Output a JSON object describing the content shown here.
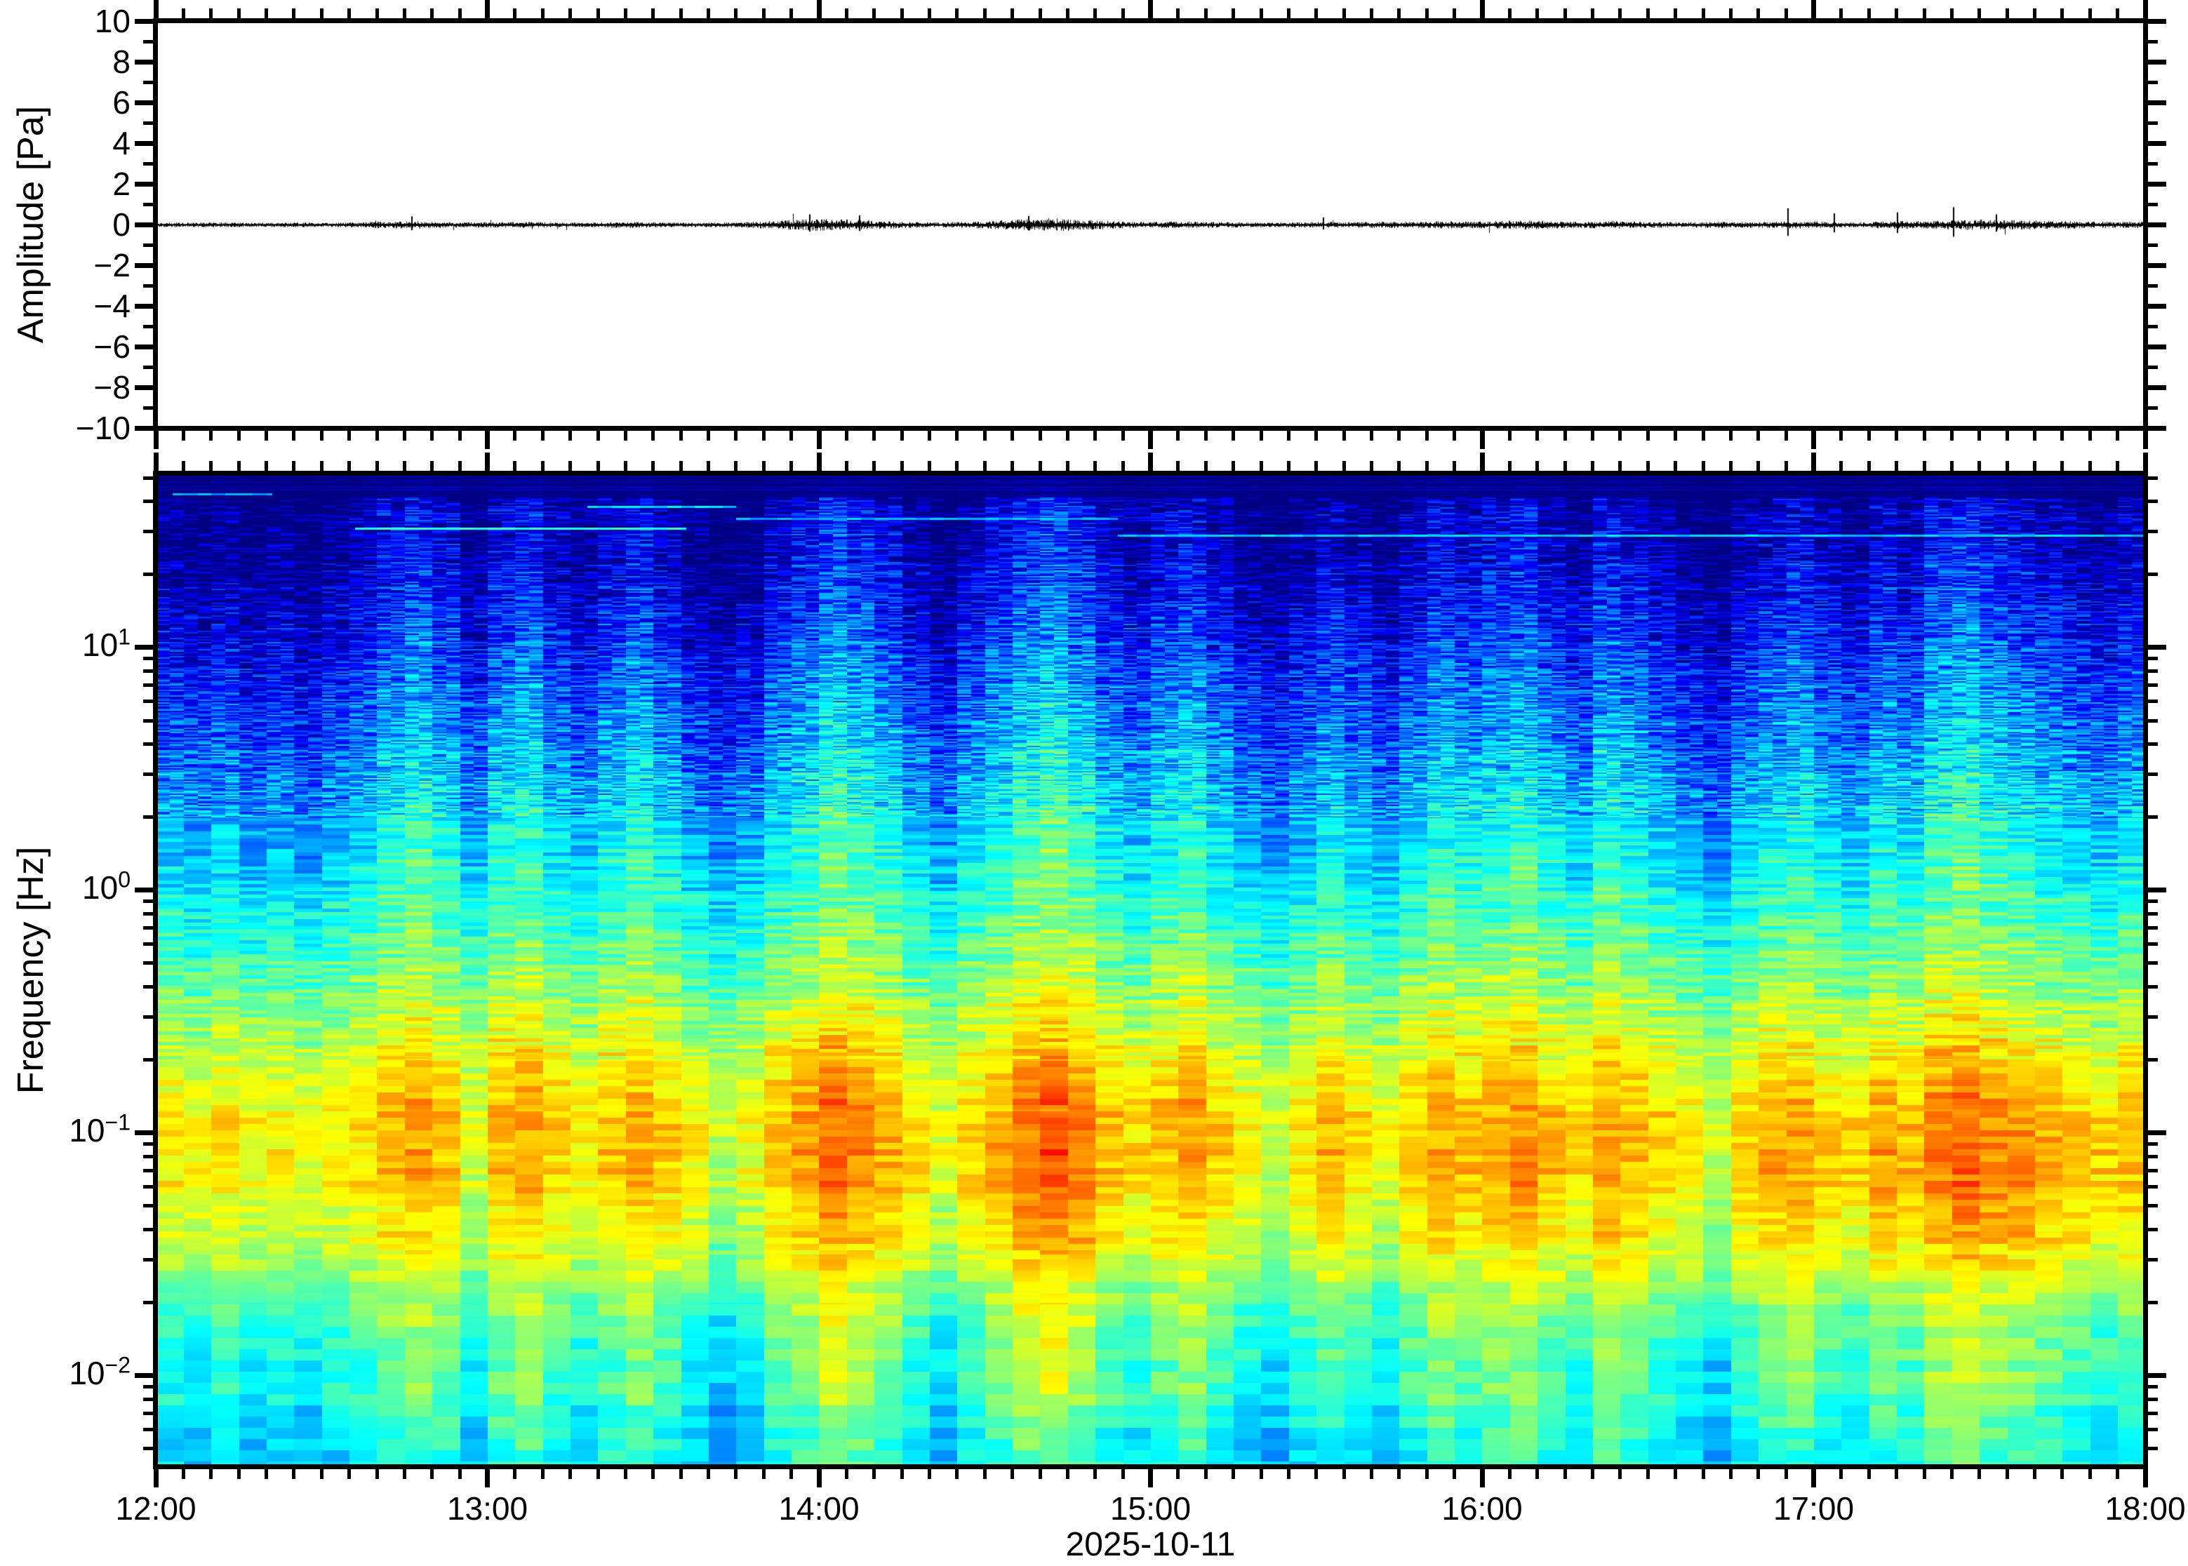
{
  "figure": {
    "date_label": "2025-10-11",
    "top_panel": {
      "ylabel": "Amplitude [Pa]",
      "ylim": [
        -10,
        10
      ],
      "ytick_major_values": [
        10,
        8,
        6,
        4,
        2,
        0,
        -2,
        -4,
        -6,
        -8,
        -10
      ],
      "ytick_major_labels": [
        "10",
        "8",
        "6",
        "4",
        "2",
        "0",
        "−2",
        "−4",
        "−6",
        "−8",
        "−10"
      ],
      "ytick_minor_values": [
        9,
        7,
        5,
        3,
        1,
        -1,
        -3,
        -5,
        -7,
        -9
      ]
    },
    "bottom_panel": {
      "ylabel": "Frequency [Hz]",
      "yscale": "log",
      "ylim_hz": [
        0.0042,
        52
      ],
      "ytick_major": [
        {
          "mantissa": "10",
          "exponent": "1",
          "value_hz": 10
        },
        {
          "mantissa": "10",
          "exponent": "0",
          "value_hz": 1
        },
        {
          "mantissa": "10",
          "exponent": "−1",
          "value_hz": 0.1
        },
        {
          "mantissa": "10",
          "exponent": "−2",
          "value_hz": 0.01
        }
      ]
    },
    "x_axis": {
      "start_hour": 12,
      "end_hour": 18,
      "minor_tick_minutes": 5,
      "hour_ticks": [
        {
          "hour": 12,
          "label": "12:00"
        },
        {
          "hour": 13,
          "label": "13:00"
        },
        {
          "hour": 14,
          "label": "14:00"
        },
        {
          "hour": 15,
          "label": "15:00"
        },
        {
          "hour": 16,
          "label": "16:00"
        },
        {
          "hour": 17,
          "label": "17:00"
        },
        {
          "hour": 18,
          "label": "18:00"
        }
      ]
    }
  },
  "chart_data": [
    {
      "type": "line",
      "name": "infrasound-waveform",
      "title": "",
      "xlabel": "",
      "ylabel": "Amplitude [Pa]",
      "x_range_hours": [
        12,
        18
      ],
      "ylim": [
        -10,
        10
      ],
      "line_color": "#000000",
      "description": "Near-zero pressure trace with low-level noise (~±0.1 Pa) and small bursts near 12:40, 13:50-14:10, 14:30-14:50, 16:00-16:10 and 17:10-17:45; largest spikes reach about ±0.8 Pa.",
      "noise_envelope_pa_per_5min": [
        0.06,
        0.06,
        0.07,
        0.06,
        0.06,
        0.07,
        0.06,
        0.07,
        0.1,
        0.12,
        0.09,
        0.07,
        0.08,
        0.09,
        0.07,
        0.07,
        0.08,
        0.09,
        0.07,
        0.06,
        0.07,
        0.08,
        0.12,
        0.16,
        0.18,
        0.15,
        0.12,
        0.08,
        0.07,
        0.09,
        0.13,
        0.17,
        0.2,
        0.16,
        0.12,
        0.08,
        0.09,
        0.1,
        0.08,
        0.07,
        0.07,
        0.08,
        0.09,
        0.08,
        0.1,
        0.09,
        0.11,
        0.09,
        0.12,
        0.14,
        0.11,
        0.09,
        0.12,
        0.09,
        0.08,
        0.08,
        0.09,
        0.08,
        0.1,
        0.11,
        0.08,
        0.08,
        0.12,
        0.11,
        0.14,
        0.16,
        0.15,
        0.13,
        0.12,
        0.1,
        0.09,
        0.1
      ],
      "spikes": [
        [
          12.77,
          0.4
        ],
        [
          13.97,
          0.5
        ],
        [
          14.12,
          0.45
        ],
        [
          14.63,
          0.42
        ],
        [
          15.52,
          0.35
        ],
        [
          16.92,
          0.8
        ],
        [
          17.06,
          0.55
        ],
        [
          17.25,
          0.6
        ],
        [
          17.42,
          0.85
        ],
        [
          17.55,
          0.5
        ]
      ]
    },
    {
      "type": "heatmap",
      "name": "spectrogram",
      "title": "",
      "xlabel": "2025-10-11",
      "ylabel": "Frequency [Hz]",
      "x_range_hours": [
        12,
        18
      ],
      "y_range_hz": [
        0.0042,
        52
      ],
      "yscale": "log",
      "colormap": "jet",
      "colormap_low_color": "#000082",
      "colormap_high_color": "#ff8c3c",
      "description": "Infrasound spectrogram: dark-navy low power above ~20 Hz, vertical blue/cyan noise columns 1-20 Hz, persistent yellow-green microbarom band near 0.1-0.3 Hz, yellow-orange energy 0.03-0.1 Hz strongest at 14:00, 14:40 and after 16:00 (most orange 17:15-17:50), cyan-blue mottling below 0.02 Hz, faint narrowband tonal lines near 30-40 Hz.",
      "power_profile_logf_vs_norm": [
        [
          1.717,
          0.01
        ],
        [
          1.62,
          0.02
        ],
        [
          1.5,
          0.04
        ],
        [
          1.35,
          0.07
        ],
        [
          1.15,
          0.12
        ],
        [
          0.95,
          0.17
        ],
        [
          0.7,
          0.23
        ],
        [
          0.45,
          0.29
        ],
        [
          0.2,
          0.35
        ],
        [
          -0.05,
          0.41
        ],
        [
          -0.3,
          0.48
        ],
        [
          -0.55,
          0.56
        ],
        [
          -0.8,
          0.63
        ],
        [
          -1.0,
          0.665
        ],
        [
          -1.2,
          0.645
        ],
        [
          -1.45,
          0.585
        ],
        [
          -1.7,
          0.49
        ],
        [
          -1.95,
          0.43
        ],
        [
          -2.2,
          0.39
        ],
        [
          -2.374,
          0.37
        ]
      ],
      "column_gain_per_5min": [
        0.96,
        0.93,
        0.97,
        0.92,
        0.95,
        0.91,
        0.96,
        0.99,
        1.06,
        1.1,
        1.04,
        0.95,
        1.05,
        1.09,
        1.0,
        0.96,
        1.03,
        1.08,
        1.01,
        0.94,
        0.9,
        0.93,
        1.02,
        1.07,
        1.14,
        1.1,
        1.05,
        0.97,
        0.92,
        1.0,
        1.06,
        1.12,
        1.16,
        1.1,
        1.02,
        0.98,
        1.04,
        1.08,
        1.0,
        0.95,
        0.91,
        0.96,
        1.02,
        0.98,
        0.93,
        1.0,
        1.07,
        1.03,
        1.06,
        1.09,
        1.02,
        0.97,
        1.08,
        1.04,
        0.98,
        0.94,
        0.9,
        0.99,
        1.03,
        1.06,
        1.0,
        0.97,
        1.04,
        1.01,
        1.1,
        1.13,
        1.08,
        1.05,
        1.02,
        0.99,
        0.96,
        1.01
      ],
      "lowfreq_boost_per_5min": [
        0,
        0,
        0,
        0,
        0,
        0,
        0,
        0,
        0.02,
        0.03,
        0.02,
        -0.08,
        0.03,
        0.05,
        0.02,
        0,
        0.02,
        0.04,
        0.02,
        0,
        -0.1,
        -0.04,
        0.04,
        0.08,
        0.12,
        0.09,
        0.05,
        0.02,
        -0.04,
        0.02,
        0.07,
        0.11,
        0.14,
        0.11,
        0.05,
        0.02,
        0.04,
        0.06,
        0.03,
        0,
        -0.08,
        0.03,
        0.05,
        0.02,
        -0.03,
        0.03,
        0.06,
        0.04,
        0.06,
        0.08,
        0.05,
        0.03,
        0.07,
        0.05,
        0.03,
        0.02,
        -0.06,
        0.05,
        0.08,
        0.07,
        0.04,
        0.05,
        0.09,
        0.07,
        0.11,
        0.13,
        0.11,
        0.12,
        0.1,
        0.08,
        0.05,
        0.06
      ],
      "tonal_lines_hz": [
        {
          "hz": 31,
          "start_hour": 12.6,
          "end_hour": 13.6,
          "level": 0.42
        },
        {
          "hz": 38,
          "start_hour": 13.3,
          "end_hour": 13.75,
          "level": 0.34
        },
        {
          "hz": 34,
          "start_hour": 13.75,
          "end_hour": 14.9,
          "level": 0.3
        },
        {
          "hz": 29,
          "start_hour": 14.9,
          "end_hour": 18.0,
          "level": 0.33
        },
        {
          "hz": 43,
          "start_hour": 12.05,
          "end_hour": 12.35,
          "level": 0.28
        }
      ]
    }
  ]
}
